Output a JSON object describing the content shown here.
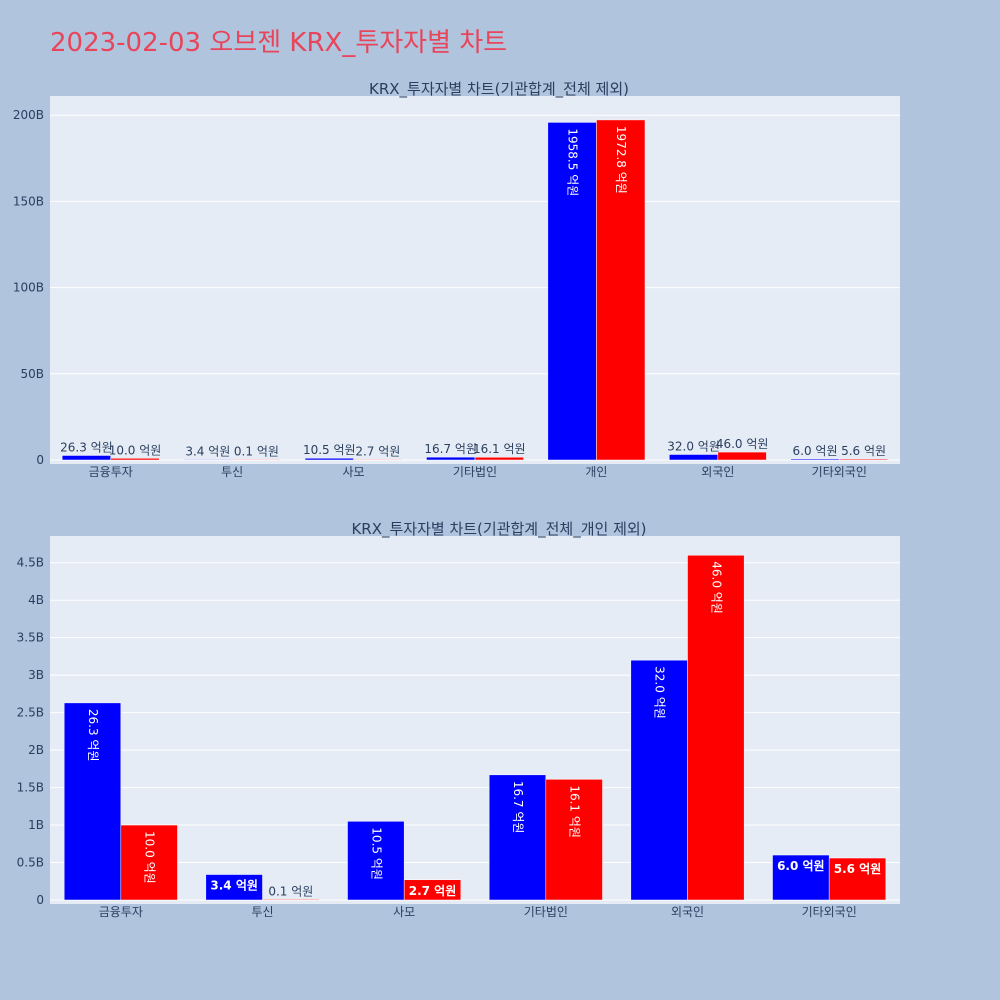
{
  "header": {
    "title": "2023-02-03 오브젠 KRX_투자자별 차트"
  },
  "colors": {
    "page_bg": "#b0c4de",
    "plot_bg": "#e5ecf6",
    "buy": "#0000ff",
    "sell": "#ff0000",
    "title": "#e8455a",
    "text": "#2a3f5f"
  },
  "chart_data": [
    {
      "type": "bar",
      "title": "KRX_투자자별 차트(기관합계_전체 제외)",
      "categories": [
        "금융투자",
        "투신",
        "사모",
        "기타법인",
        "개인",
        "외국인",
        "기타외국인"
      ],
      "series": [
        {
          "values": [
            2.63,
            0.34,
            1.05,
            1.67,
            195.85,
            3.2,
            0.6
          ],
          "labels": [
            "26.3 억원",
            "3.4 억원",
            "10.5 억원",
            "16.7 억원",
            "1958.5 억원",
            "32.0 억원",
            "6.0 억원"
          ]
        },
        {
          "values": [
            1.0,
            0.01,
            0.27,
            1.61,
            197.28,
            4.6,
            0.56
          ],
          "labels": [
            "10.0 억원",
            "0.1 억원",
            "2.7 억원",
            "16.1 억원",
            "1972.8 억원",
            "46.0 억원",
            "5.6 억원"
          ]
        }
      ],
      "yunit": "B",
      "ylim": [
        0,
        210
      ],
      "yticks": [
        0,
        50,
        100,
        150,
        200
      ],
      "ytick_labels": [
        "0",
        "50B",
        "100B",
        "150B",
        "200B"
      ],
      "grid": true
    },
    {
      "type": "bar",
      "title": "KRX_투자자별 차트(기관합계_전체_개인 제외)",
      "categories": [
        "금융투자",
        "투신",
        "사모",
        "기타법인",
        "외국인",
        "기타외국인"
      ],
      "series": [
        {
          "values": [
            2.63,
            0.34,
            1.05,
            1.67,
            3.2,
            0.6
          ],
          "labels": [
            "26.3 억원",
            "3.4 억원",
            "10.5 억원",
            "16.7 억원",
            "32.0 억원",
            "6.0 억원"
          ]
        },
        {
          "values": [
            1.0,
            0.01,
            0.27,
            1.61,
            4.6,
            0.56
          ],
          "labels": [
            "10.0 억원",
            "0.1 억원",
            "2.7 억원",
            "16.1 억원",
            "46.0 억원",
            "5.6 억원"
          ]
        }
      ],
      "yunit": "B",
      "ylim": [
        0,
        4.83
      ],
      "yticks": [
        0,
        0.5,
        1,
        1.5,
        2,
        2.5,
        3,
        3.5,
        4,
        4.5
      ],
      "ytick_labels": [
        "0",
        "0.5B",
        "1B",
        "1.5B",
        "2B",
        "2.5B",
        "3B",
        "3.5B",
        "4B",
        "4.5B"
      ],
      "grid": true
    }
  ]
}
